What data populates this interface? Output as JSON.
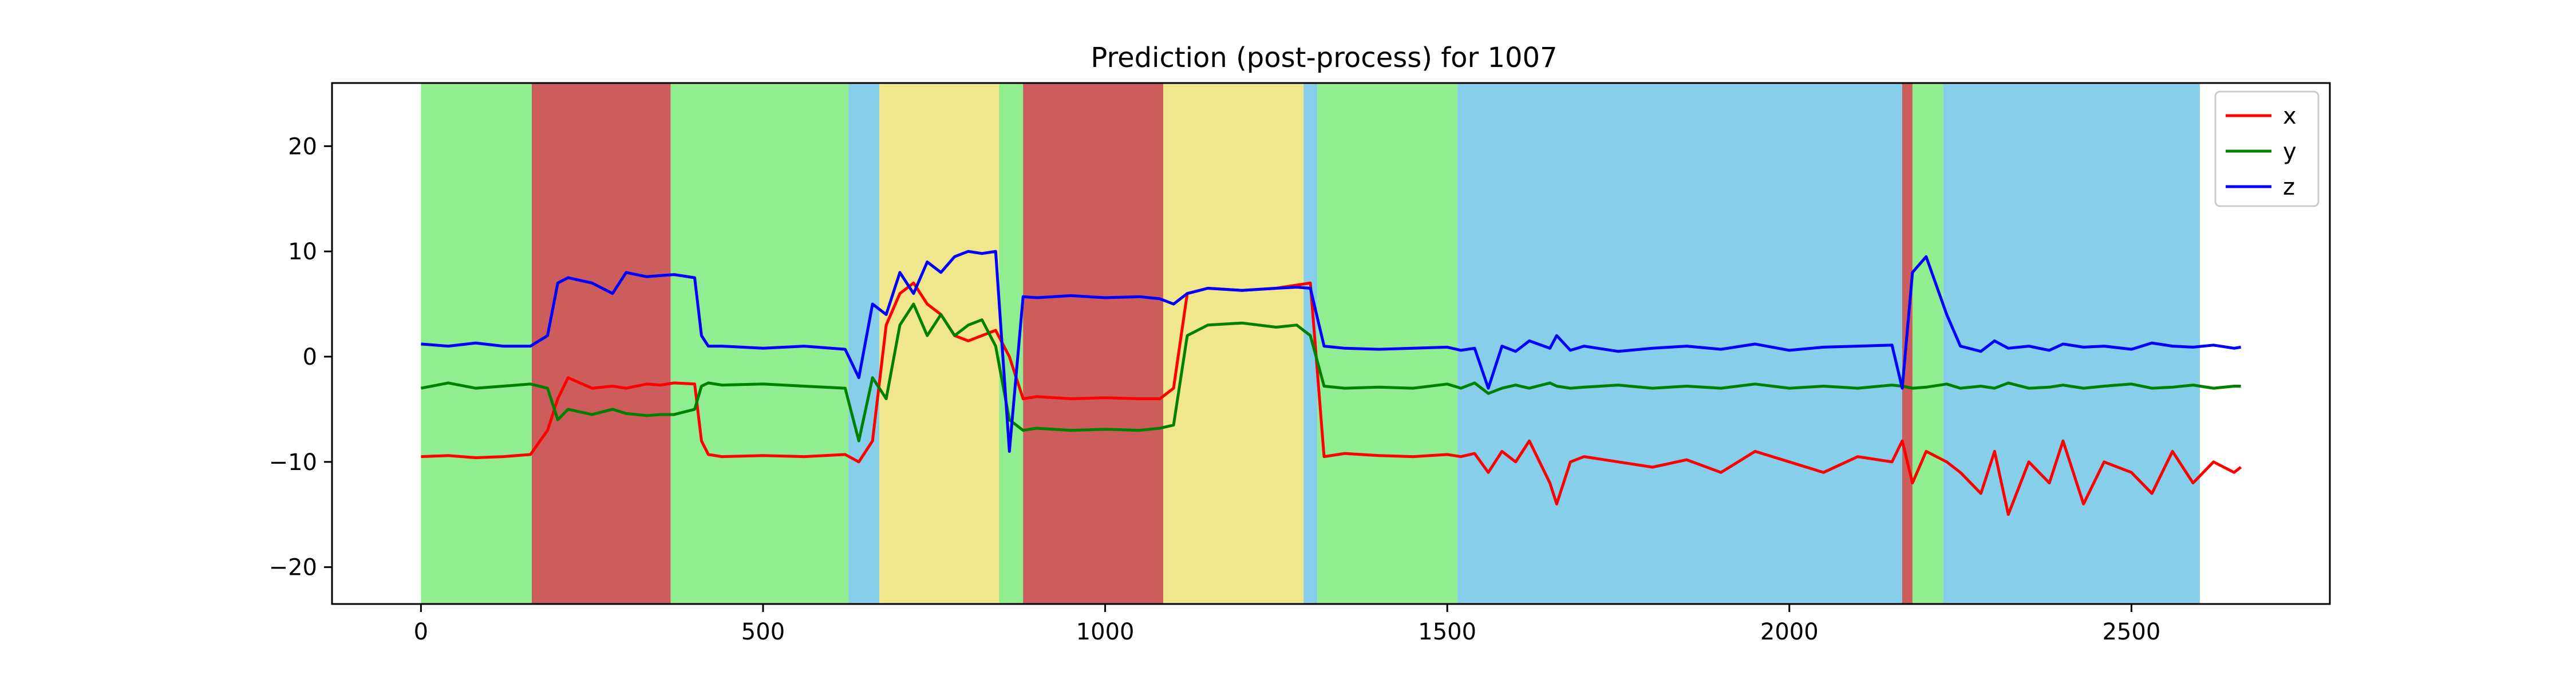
{
  "chart_data": {
    "type": "line",
    "title": "Prediction (post-process) for 1007",
    "xlim": [
      -130,
      2790
    ],
    "ylim": [
      -23.5,
      26
    ],
    "x_ticks": [
      0,
      500,
      1000,
      1500,
      2000,
      2500
    ],
    "y_ticks": [
      -20,
      -10,
      0,
      10,
      20
    ],
    "x_tick_labels": [
      "0",
      "500",
      "1000",
      "1500",
      "2000",
      "2500"
    ],
    "y_tick_labels": [
      "−20",
      "−10",
      "0",
      "10",
      "20"
    ],
    "legend_position": "top-right",
    "background_segments": [
      {
        "start": 0,
        "end": 162,
        "color": "#90ee90"
      },
      {
        "start": 162,
        "end": 365,
        "color": "#cd5c5c"
      },
      {
        "start": 365,
        "end": 625,
        "color": "#90ee90"
      },
      {
        "start": 625,
        "end": 670,
        "color": "#87ceeb"
      },
      {
        "start": 670,
        "end": 845,
        "color": "#f0e68c"
      },
      {
        "start": 845,
        "end": 880,
        "color": "#90ee90"
      },
      {
        "start": 880,
        "end": 1085,
        "color": "#cd5c5c"
      },
      {
        "start": 1085,
        "end": 1290,
        "color": "#f0e68c"
      },
      {
        "start": 1290,
        "end": 1310,
        "color": "#87ceeb"
      },
      {
        "start": 1310,
        "end": 1515,
        "color": "#90ee90"
      },
      {
        "start": 1515,
        "end": 2165,
        "color": "#87ceeb"
      },
      {
        "start": 2165,
        "end": 2180,
        "color": "#cd5c5c"
      },
      {
        "start": 2180,
        "end": 2225,
        "color": "#90ee90"
      },
      {
        "start": 2225,
        "end": 2600,
        "color": "#87ceeb"
      }
    ],
    "series": [
      {
        "name": "x",
        "color": "#ff0000",
        "x": [
          0,
          40,
          80,
          120,
          160,
          185,
          200,
          215,
          250,
          280,
          300,
          330,
          350,
          370,
          400,
          410,
          420,
          440,
          500,
          560,
          620,
          640,
          660,
          680,
          700,
          720,
          740,
          760,
          780,
          800,
          820,
          840,
          860,
          880,
          900,
          950,
          1000,
          1050,
          1080,
          1100,
          1120,
          1150,
          1200,
          1250,
          1280,
          1300,
          1320,
          1350,
          1400,
          1450,
          1500,
          1520,
          1540,
          1560,
          1580,
          1600,
          1620,
          1650,
          1660,
          1680,
          1700,
          1750,
          1800,
          1850,
          1900,
          1950,
          2000,
          2050,
          2100,
          2150,
          2165,
          2180,
          2200,
          2230,
          2250,
          2280,
          2300,
          2320,
          2350,
          2380,
          2400,
          2430,
          2460,
          2500,
          2530,
          2560,
          2590,
          2620,
          2650,
          2660
        ],
        "values": [
          -9.5,
          -9.4,
          -9.6,
          -9.5,
          -9.3,
          -7,
          -4,
          -2,
          -3,
          -2.8,
          -3,
          -2.6,
          -2.7,
          -2.5,
          -2.6,
          -8,
          -9.3,
          -9.5,
          -9.4,
          -9.5,
          -9.3,
          -10,
          -8,
          3,
          6,
          7,
          5,
          4,
          2,
          1.5,
          2,
          2.5,
          0,
          -4,
          -3.8,
          -4,
          -3.9,
          -4,
          -4,
          -3,
          6,
          6.5,
          6.3,
          6.5,
          6.8,
          7,
          -9.5,
          -9.2,
          -9.4,
          -9.5,
          -9.3,
          -9.5,
          -9.2,
          -11,
          -9,
          -10,
          -8,
          -12,
          -14,
          -10,
          -9.5,
          -10,
          -10.5,
          -9.8,
          -11,
          -9,
          -10,
          -11,
          -9.5,
          -10,
          -8,
          -12,
          -9,
          -10,
          -11,
          -13,
          -9,
          -15,
          -10,
          -12,
          -8,
          -14,
          -10,
          -11,
          -13,
          -9,
          -12,
          -10,
          -11,
          -10.5
        ]
      },
      {
        "name": "y",
        "color": "#008000",
        "x": [
          0,
          40,
          80,
          120,
          160,
          185,
          200,
          215,
          250,
          280,
          300,
          330,
          350,
          370,
          400,
          410,
          420,
          440,
          500,
          560,
          620,
          640,
          660,
          680,
          700,
          720,
          740,
          760,
          780,
          800,
          820,
          840,
          860,
          880,
          900,
          950,
          1000,
          1050,
          1080,
          1100,
          1120,
          1150,
          1200,
          1250,
          1280,
          1300,
          1320,
          1350,
          1400,
          1450,
          1500,
          1520,
          1540,
          1560,
          1580,
          1600,
          1620,
          1650,
          1660,
          1680,
          1700,
          1750,
          1800,
          1850,
          1900,
          1950,
          2000,
          2050,
          2100,
          2150,
          2165,
          2180,
          2200,
          2230,
          2250,
          2280,
          2300,
          2320,
          2350,
          2380,
          2400,
          2430,
          2460,
          2500,
          2530,
          2560,
          2590,
          2620,
          2650,
          2660
        ],
        "values": [
          -3,
          -2.5,
          -3,
          -2.8,
          -2.6,
          -3,
          -6,
          -5,
          -5.5,
          -5,
          -5.4,
          -5.6,
          -5.5,
          -5.5,
          -5,
          -2.8,
          -2.5,
          -2.7,
          -2.6,
          -2.8,
          -3,
          -8,
          -2,
          -4,
          3,
          5,
          2,
          4,
          2,
          3,
          3.5,
          1,
          -6,
          -7,
          -6.8,
          -7,
          -6.9,
          -7,
          -6.8,
          -6.5,
          2,
          3,
          3.2,
          2.8,
          3,
          2,
          -2.8,
          -3,
          -2.9,
          -3,
          -2.6,
          -3,
          -2.5,
          -3.5,
          -3,
          -2.7,
          -3,
          -2.5,
          -2.8,
          -3,
          -2.9,
          -2.7,
          -3,
          -2.8,
          -3,
          -2.6,
          -3,
          -2.8,
          -3,
          -2.7,
          -2.8,
          -3,
          -2.9,
          -2.6,
          -3,
          -2.8,
          -3,
          -2.5,
          -3,
          -2.9,
          -2.7,
          -3,
          -2.8,
          -2.6,
          -3,
          -2.9,
          -2.7,
          -3,
          -2.8,
          -2.8
        ]
      },
      {
        "name": "z",
        "color": "#0000ff",
        "x": [
          0,
          40,
          80,
          120,
          160,
          185,
          200,
          215,
          250,
          280,
          300,
          330,
          350,
          370,
          400,
          410,
          420,
          440,
          500,
          560,
          620,
          640,
          660,
          680,
          700,
          720,
          740,
          760,
          780,
          800,
          820,
          840,
          860,
          880,
          900,
          950,
          1000,
          1050,
          1080,
          1100,
          1120,
          1150,
          1200,
          1250,
          1280,
          1300,
          1320,
          1350,
          1400,
          1450,
          1500,
          1520,
          1540,
          1560,
          1580,
          1600,
          1620,
          1650,
          1660,
          1680,
          1700,
          1750,
          1800,
          1850,
          1900,
          1950,
          2000,
          2050,
          2100,
          2150,
          2165,
          2180,
          2200,
          2230,
          2250,
          2280,
          2300,
          2320,
          2350,
          2380,
          2400,
          2430,
          2460,
          2500,
          2530,
          2560,
          2590,
          2620,
          2650,
          2660
        ],
        "values": [
          1.2,
          1,
          1.3,
          1,
          1,
          2,
          7,
          7.5,
          7,
          6,
          8,
          7.6,
          7.7,
          7.8,
          7.5,
          2,
          1,
          1,
          0.8,
          1,
          0.7,
          -2,
          5,
          4,
          8,
          6,
          9,
          8,
          9.5,
          10,
          9.8,
          10,
          -9,
          5.7,
          5.6,
          5.8,
          5.6,
          5.7,
          5.5,
          5,
          6,
          6.5,
          6.3,
          6.5,
          6.6,
          6.5,
          1,
          0.8,
          0.7,
          0.8,
          0.9,
          0.6,
          0.8,
          -3,
          1,
          0.5,
          1.5,
          0.8,
          2,
          0.6,
          1,
          0.5,
          0.8,
          1,
          0.7,
          1.2,
          0.6,
          0.9,
          1,
          1.1,
          -3,
          8,
          9.5,
          4,
          1,
          0.5,
          1.5,
          0.8,
          1,
          0.6,
          1.2,
          0.9,
          1,
          0.7,
          1.3,
          1,
          0.9,
          1.1,
          0.8,
          0.9
        ]
      }
    ]
  }
}
